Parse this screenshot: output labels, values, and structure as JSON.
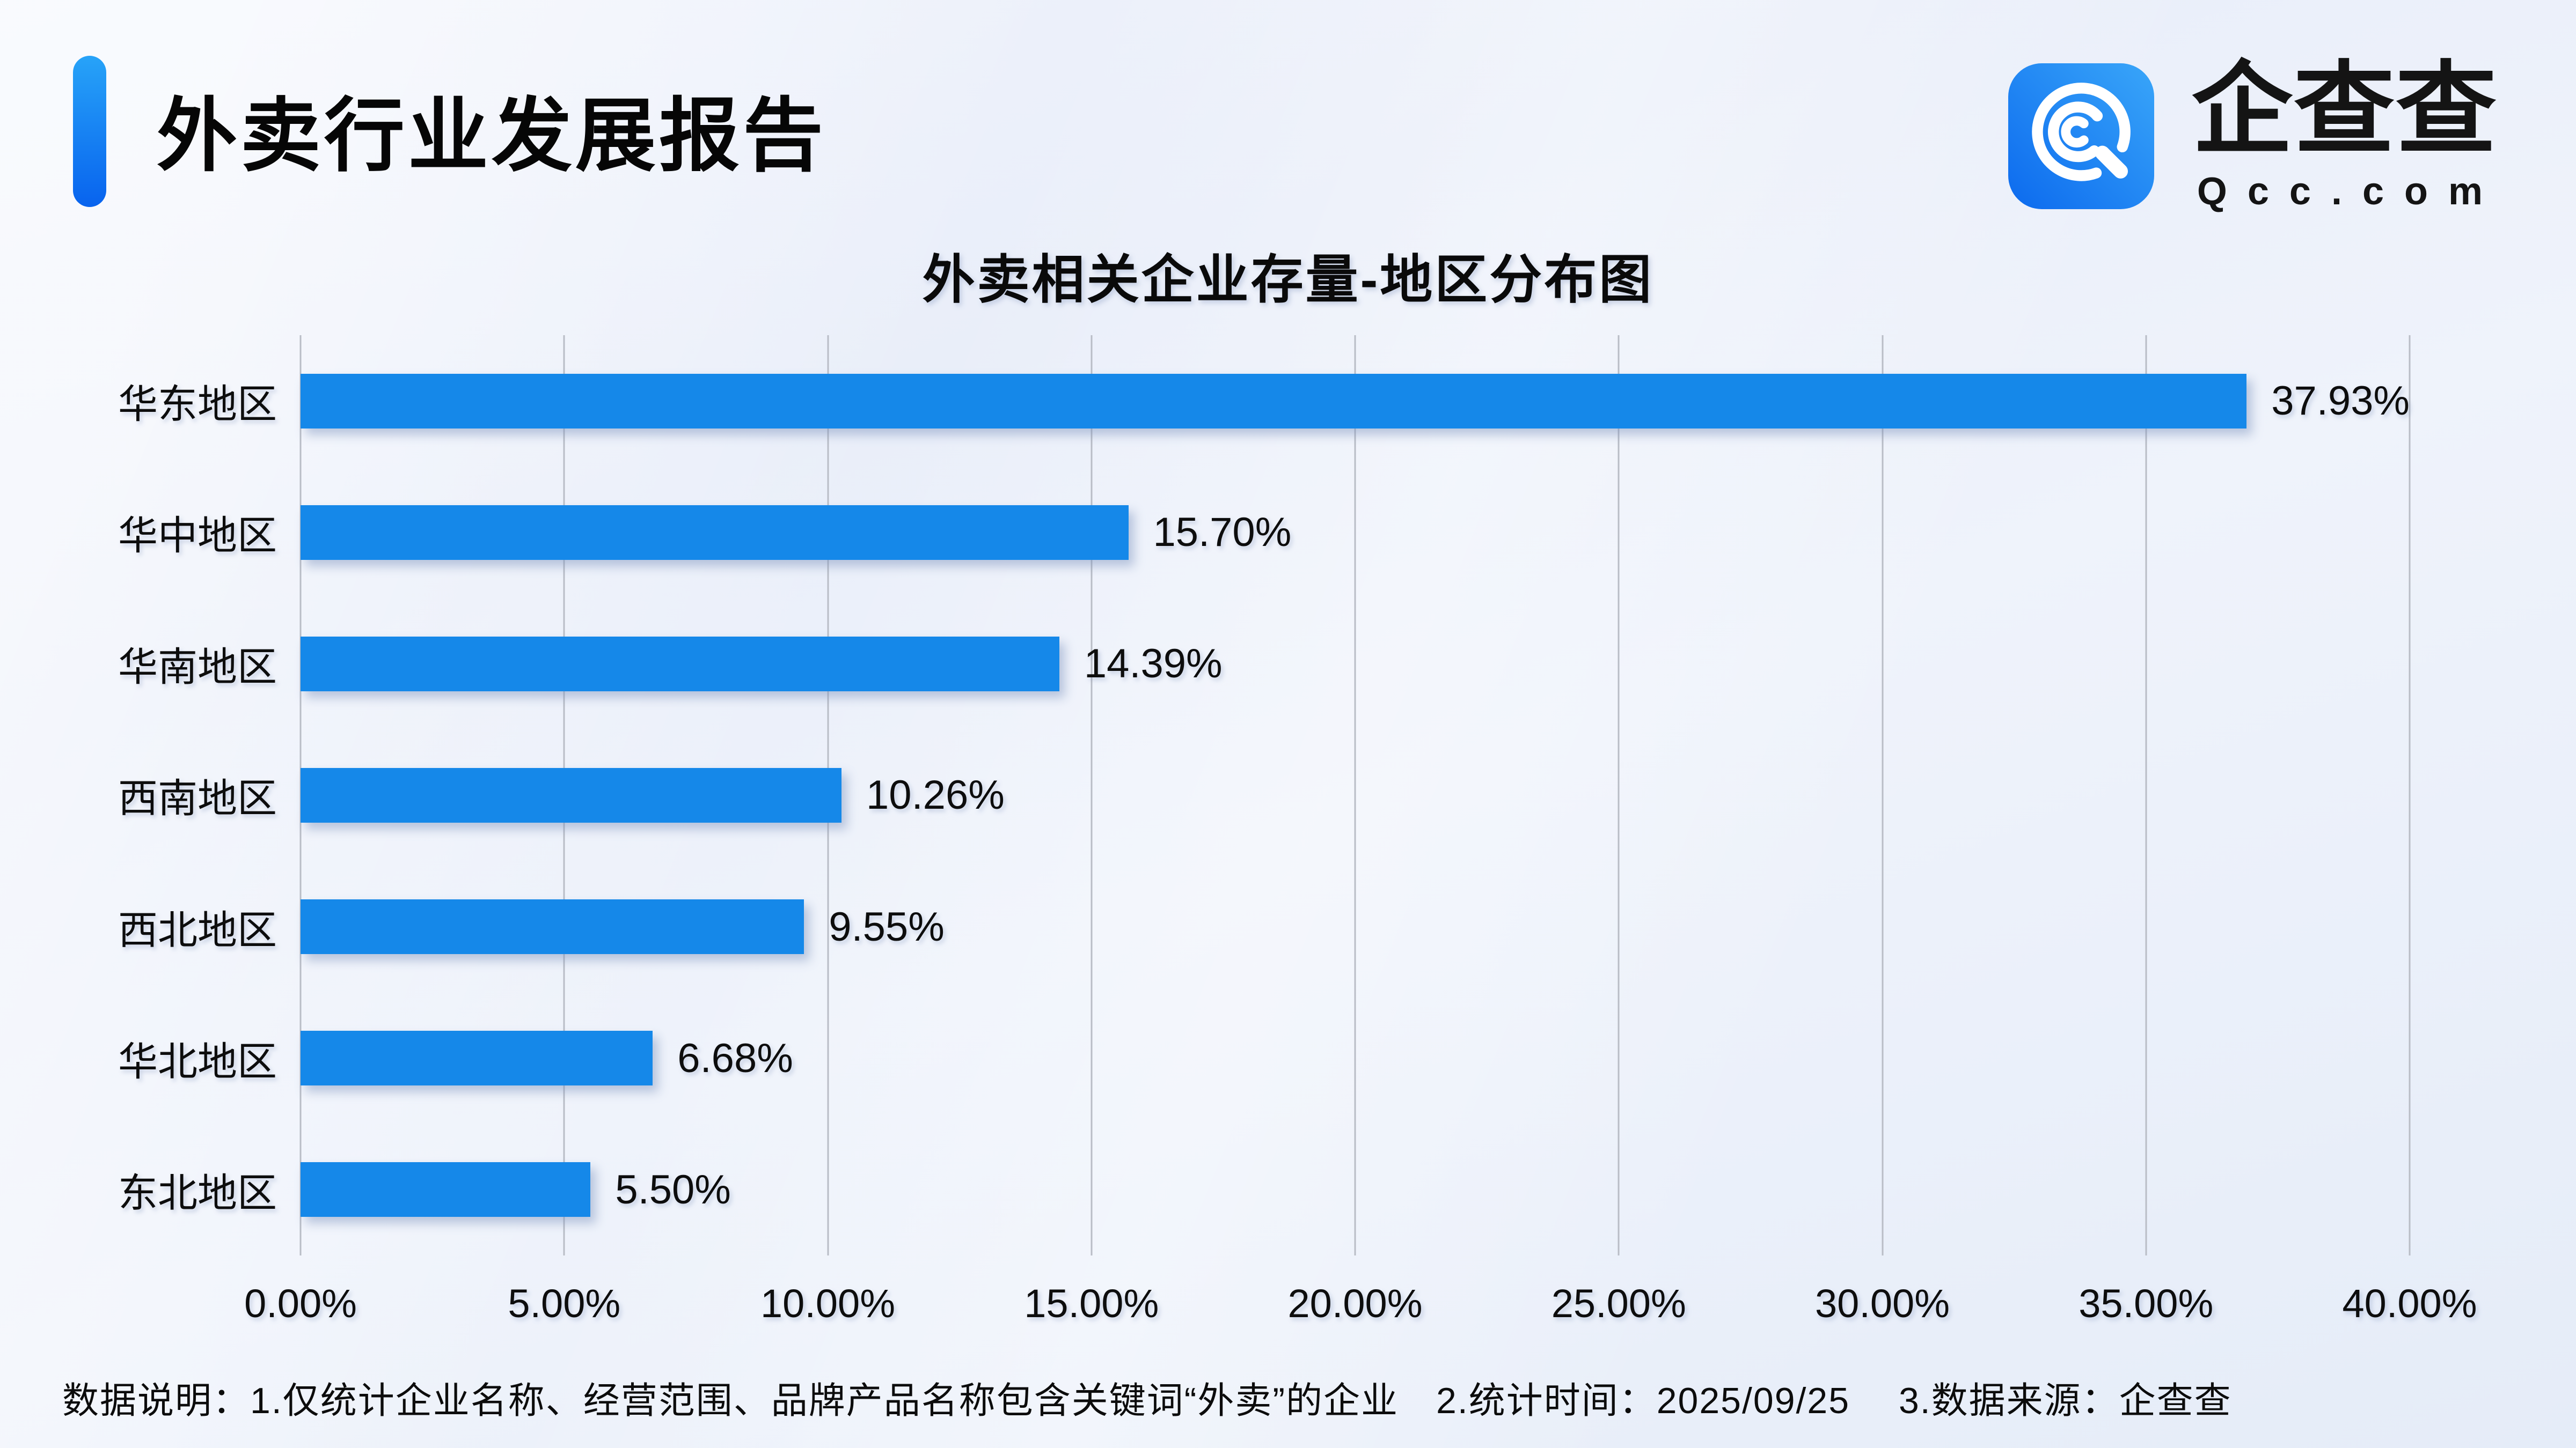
{
  "header": {
    "title": "外卖行业发展报告",
    "logo": {
      "brand_name": "企查查",
      "brand_domain": "Qcc.com"
    }
  },
  "chart_data": {
    "type": "bar",
    "orientation": "horizontal",
    "title": "外卖相关企业存量-地区分布图",
    "categories": [
      "华东地区",
      "华中地区",
      "华南地区",
      "西南地区",
      "西北地区",
      "华北地区",
      "东北地区"
    ],
    "values": [
      37.93,
      15.7,
      14.39,
      10.26,
      9.55,
      6.68,
      5.5
    ],
    "value_labels": [
      "37.93%",
      "15.70%",
      "14.39%",
      "10.26%",
      "9.55%",
      "6.68%",
      "5.50%"
    ],
    "xlabel": "",
    "ylabel": "",
    "xlim": [
      0,
      40
    ],
    "x_ticks": [
      "0.00%",
      "5.00%",
      "10.00%",
      "15.00%",
      "20.00%",
      "25.00%",
      "30.00%",
      "35.00%",
      "40.00%"
    ],
    "grid": "vertical-only",
    "legend": "none"
  },
  "footer": {
    "note": "数据说明：1.仅统计企业名称、经营范围、品牌产品名称包含关键词“外卖”的企业　2.统计时间：2025/09/25　 3.数据来源：企查查"
  },
  "colors": {
    "bar": "#1588e9",
    "grid": "#b9bdc6",
    "ink": "#0d0d0d",
    "accent_top": "#27a3f8",
    "accent_bottom": "#0863ee",
    "logo_gradient_left": "#0c6aee",
    "logo_gradient_right": "#39a6f9"
  }
}
